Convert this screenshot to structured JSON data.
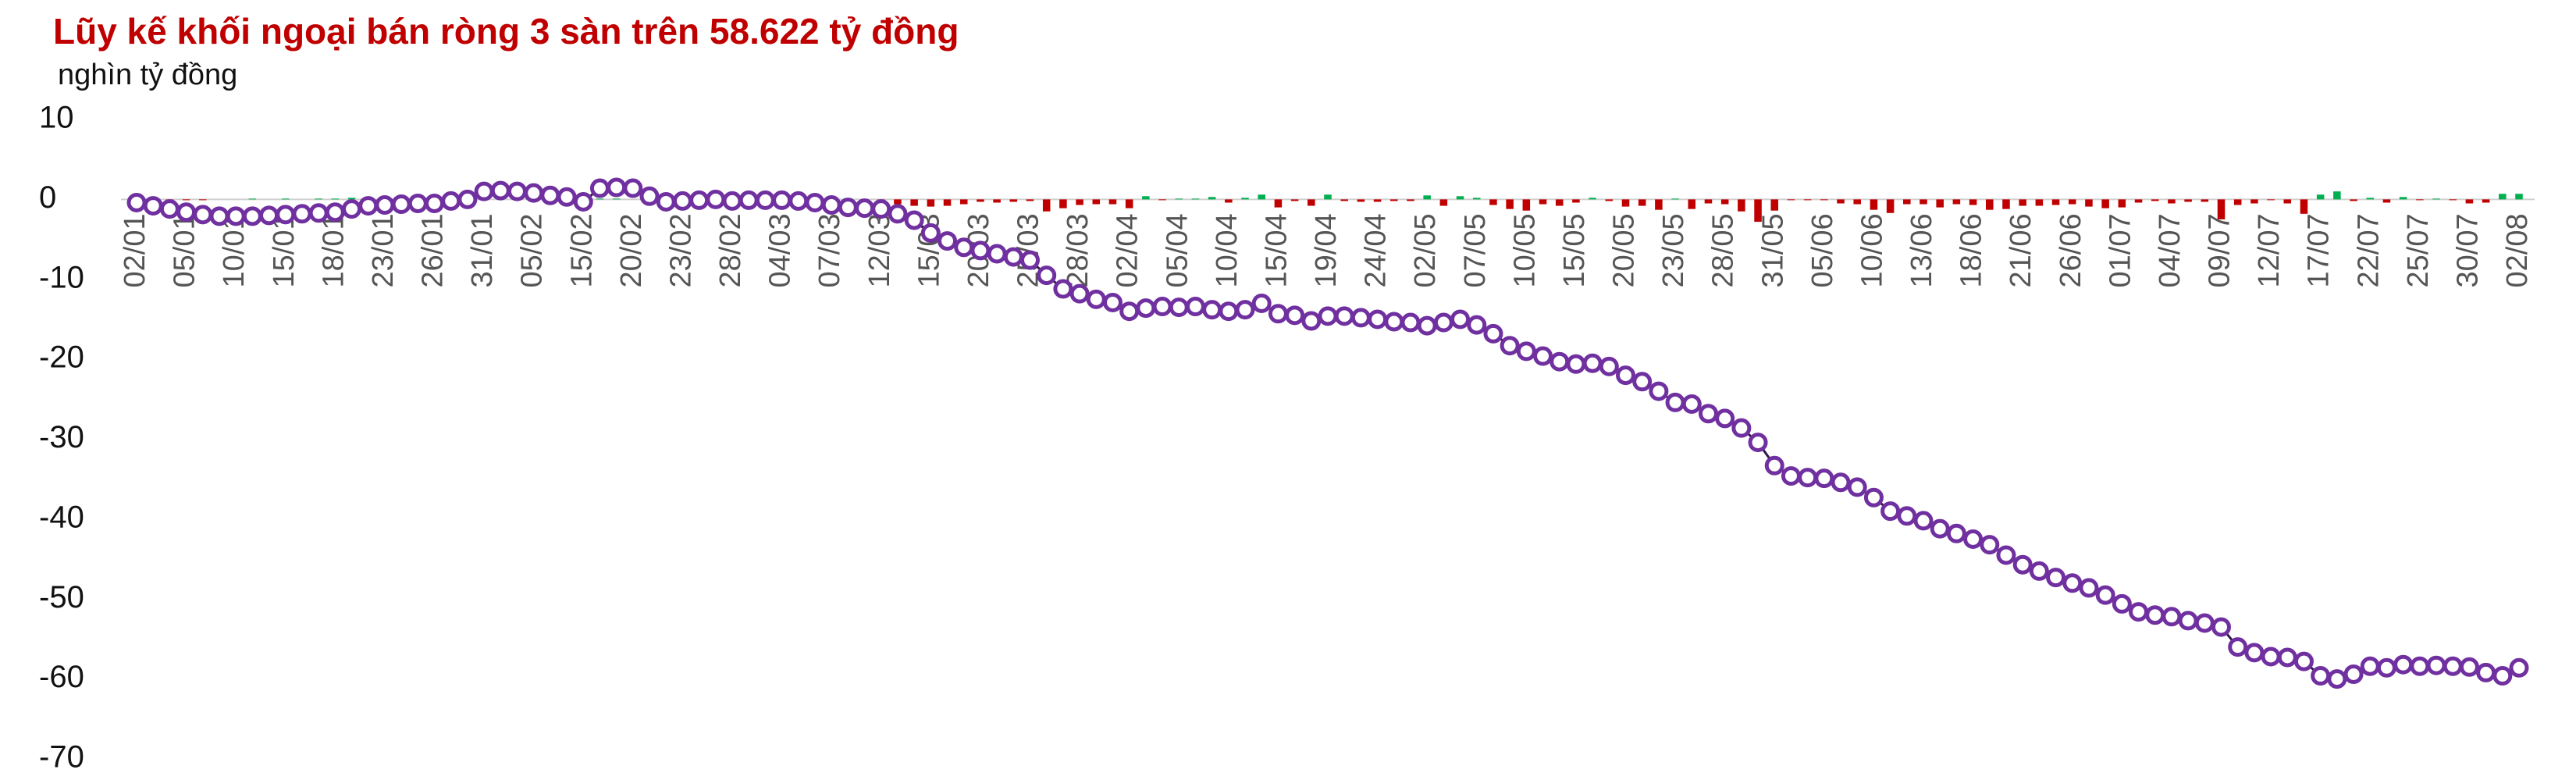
{
  "chart_data": {
    "type": "combo",
    "title": "Lũy kế khối ngoại bán ròng 3 sàn trên 58.622 tỷ đồng",
    "y_axis_label": "nghìn tỷ đồng",
    "categories": [
      "02/01",
      null,
      null,
      "05/01",
      null,
      null,
      "10/01",
      null,
      null,
      "15/01",
      null,
      null,
      "18/01",
      null,
      null,
      "23/01",
      null,
      null,
      "26/01",
      null,
      null,
      "31/01",
      null,
      null,
      "05/02",
      null,
      null,
      "15/02",
      null,
      null,
      "20/02",
      null,
      null,
      "23/02",
      null,
      null,
      "28/02",
      null,
      null,
      "04/03",
      null,
      null,
      "07/03",
      null,
      null,
      "12/03",
      null,
      null,
      "15/03",
      null,
      null,
      "20/03",
      null,
      null,
      "25/03",
      null,
      null,
      "28/03",
      null,
      null,
      "02/04",
      null,
      null,
      "05/04",
      null,
      null,
      "10/04",
      null,
      null,
      "15/04",
      null,
      null,
      "19/04",
      null,
      null,
      "24/04",
      null,
      null,
      "02/05",
      null,
      null,
      "07/05",
      null,
      null,
      "10/05",
      null,
      null,
      "15/05",
      null,
      null,
      "20/05",
      null,
      null,
      "23/05",
      null,
      null,
      "28/05",
      null,
      null,
      "31/05",
      null,
      null,
      "05/06",
      null,
      null,
      "10/06",
      null,
      null,
      "13/06",
      null,
      null,
      "18/06",
      null,
      null,
      "21/06",
      null,
      null,
      "26/06",
      null,
      null,
      "01/07",
      null,
      null,
      "04/07",
      null,
      null,
      "09/07",
      null,
      null,
      "12/07",
      null,
      null,
      "17/07",
      null,
      null,
      "22/07",
      null,
      null,
      "25/07",
      null,
      null,
      "30/07",
      null,
      null,
      "02/08"
    ],
    "series": [
      {
        "type": "bar",
        "color": "#c00000",
        "positive_color": "#00b050",
        "values": [
          0,
          -0.1,
          -0.1,
          -0.1,
          -0.1,
          0,
          0,
          0.1,
          0,
          0.1,
          0,
          0.1,
          0.1,
          0.2,
          0.1,
          0.1,
          0.1,
          0,
          0.1,
          0.1,
          0.2,
          0.1,
          0,
          -0.1,
          -0.1,
          -0.1,
          -0.1,
          -0.1,
          0.1,
          0.1,
          0,
          -0.2,
          -0.1,
          0,
          0,
          0,
          0,
          0,
          0,
          -0.1,
          -0.1,
          -0.1,
          -0.1,
          -0.2,
          -0.1,
          -0.4,
          -0.6,
          -0.8,
          -0.9,
          -0.8,
          -0.6,
          -0.3,
          -0.4,
          -0.3,
          -0.2,
          -1.5,
          -1.1,
          -0.7,
          -0.6,
          -0.6,
          -1.1,
          0.4,
          -0.1,
          0.1,
          0.1,
          0.3,
          -0.4,
          0.2,
          0.6,
          -1.0,
          -0.2,
          -0.8,
          0.6,
          -0.2,
          -0.3,
          -0.3,
          -0.2,
          -0.2,
          0.5,
          -0.8,
          0.4,
          0.2,
          -0.7,
          -1.2,
          -1.4,
          -0.6,
          -0.8,
          -0.4,
          0.2,
          -0.2,
          -0.9,
          -0.8,
          -1.3,
          0.1,
          -1.2,
          -0.5,
          -0.6,
          -1.5,
          -2.8,
          -1.4,
          -0.1,
          -0.1,
          -0.1,
          -0.5,
          -0.6,
          -1.3,
          -1.7,
          -0.6,
          -0.6,
          -1.0,
          -0.6,
          -0.7,
          -1.3,
          -1.2,
          -0.8,
          -0.8,
          -0.7,
          -0.6,
          -0.9,
          -1.1,
          -1.0,
          -0.4,
          -0.2,
          -0.5,
          -0.3,
          -0.3,
          -2.5,
          -0.7,
          -0.5,
          -0.1,
          -0.5,
          -1.8,
          0.6,
          1.0,
          -0.2,
          0.2,
          -0.4,
          0.3,
          -0.1,
          0.1,
          -0.1,
          -0.5,
          -0.4,
          0.7,
          0.7
        ]
      },
      {
        "type": "line",
        "color": "#7030a0",
        "values": [
          -0.4,
          -0.8,
          -1.2,
          -1.6,
          -1.9,
          -2.1,
          -2.1,
          -2.1,
          -2.0,
          -1.9,
          -1.8,
          -1.7,
          -1.6,
          -1.2,
          -0.8,
          -0.7,
          -0.6,
          -0.5,
          -0.5,
          -0.2,
          0.0,
          1.0,
          1.1,
          1.0,
          0.8,
          0.5,
          0.3,
          -0.3,
          1.4,
          1.5,
          1.4,
          0.4,
          -0.3,
          -0.2,
          -0.1,
          0.0,
          -0.2,
          -0.1,
          -0.1,
          -0.1,
          -0.2,
          -0.4,
          -0.7,
          -1.0,
          -1.1,
          -1.2,
          -1.8,
          -2.6,
          -4.2,
          -5.2,
          -6.0,
          -6.4,
          -6.8,
          -7.2,
          -7.6,
          -9.5,
          -11.2,
          -11.8,
          -12.5,
          -12.9,
          -14.0,
          -13.6,
          -13.4,
          -13.5,
          -13.4,
          -13.8,
          -14.0,
          -13.8,
          -13.0,
          -14.3,
          -14.5,
          -15.2,
          -14.6,
          -14.6,
          -14.8,
          -15.0,
          -15.3,
          -15.4,
          -15.8,
          -15.4,
          -15.0,
          -15.7,
          -16.8,
          -18.3,
          -19.0,
          -19.6,
          -20.3,
          -20.6,
          -20.5,
          -20.9,
          -22.0,
          -22.8,
          -24.0,
          -25.4,
          -25.6,
          -26.8,
          -27.4,
          -28.6,
          -30.4,
          -33.3,
          -34.6,
          -34.8,
          -34.9,
          -35.4,
          -36.0,
          -37.3,
          -39.0,
          -39.6,
          -40.2,
          -41.2,
          -41.8,
          -42.5,
          -43.2,
          -44.5,
          -45.7,
          -46.5,
          -47.3,
          -48.0,
          -48.6,
          -49.5,
          -50.6,
          -51.6,
          -52.0,
          -52.2,
          -52.7,
          -53.0,
          -53.5,
          -56.0,
          -56.7,
          -57.2,
          -57.3,
          -57.8,
          -59.6,
          -60.0,
          -59.4,
          -58.4,
          -58.6,
          -58.2,
          -58.4,
          -58.3,
          -58.4,
          -58.5,
          -59.2,
          -59.6,
          -58.6
        ]
      }
    ],
    "ylim": [
      -70,
      10
    ],
    "yticks": [
      10,
      0,
      -10,
      -20,
      -30,
      -40,
      -50,
      -60,
      -70
    ]
  }
}
